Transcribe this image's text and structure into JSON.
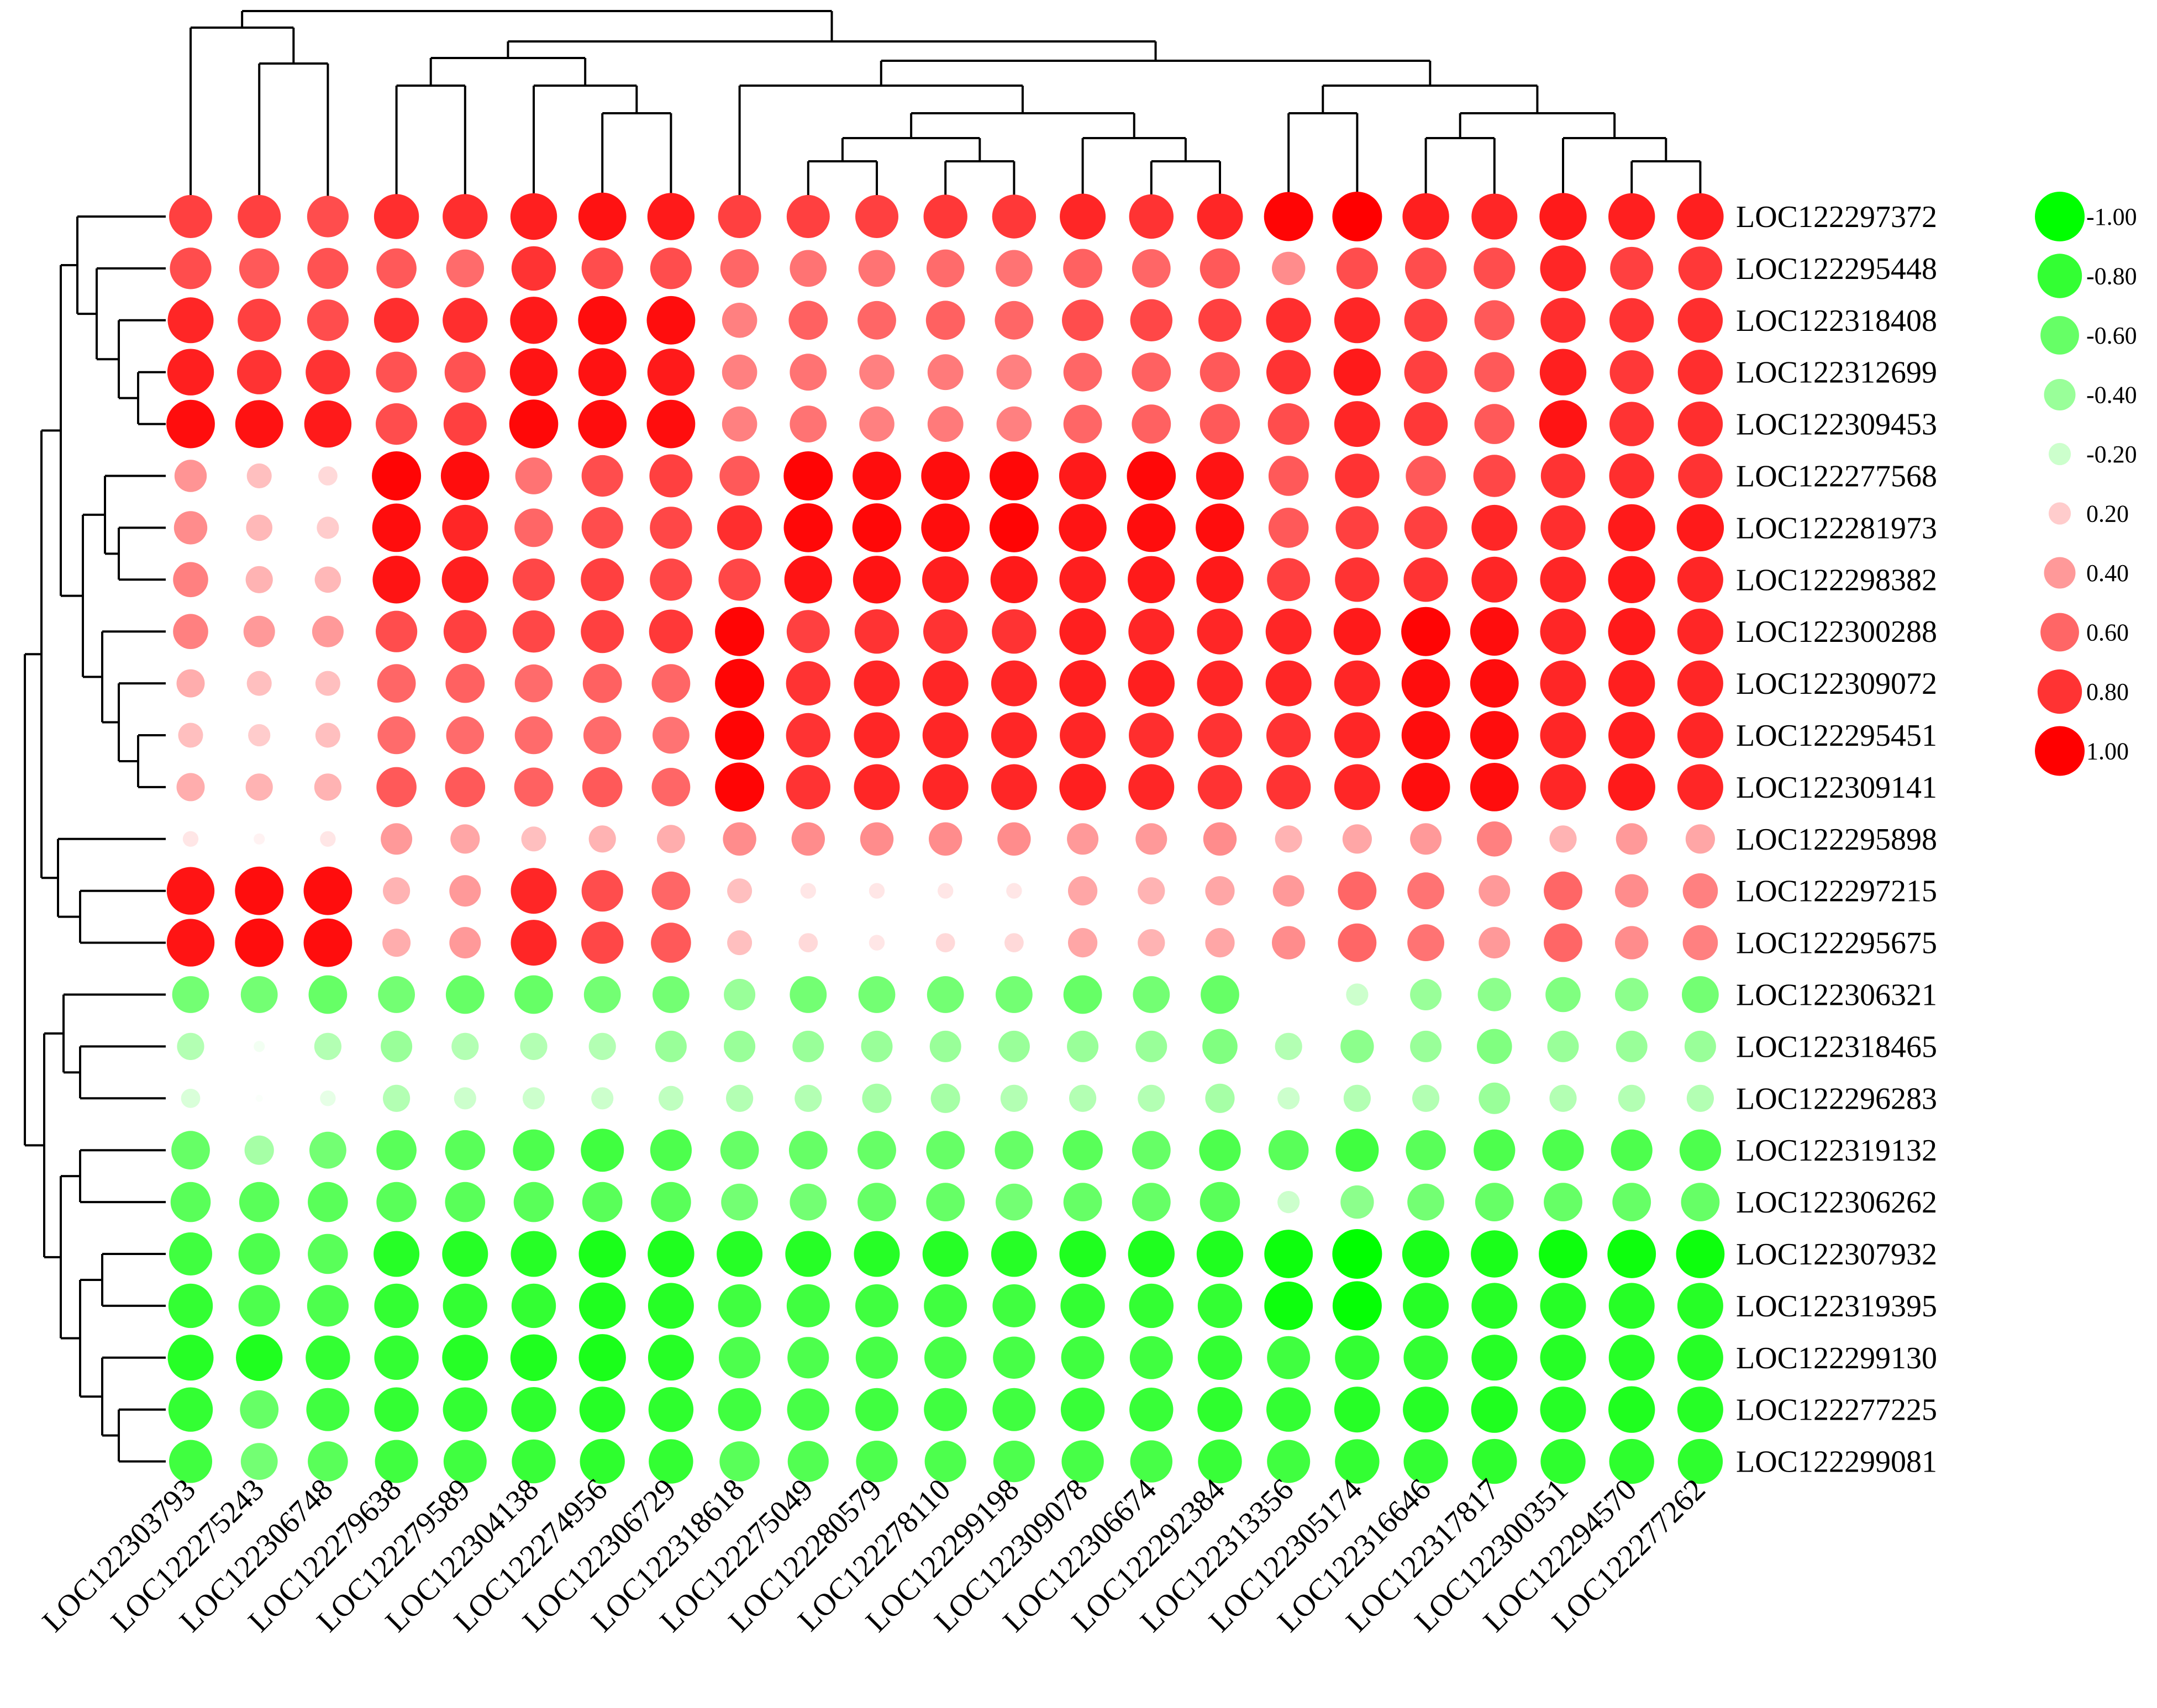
{
  "chart_data": {
    "type": "bubble_correlation_heatmap",
    "title": "",
    "xlabel": "",
    "ylabel": "",
    "color_low": "#00ff00",
    "color_mid": "#ffffff",
    "color_high": "#ff0000",
    "value_range": [
      -1.0,
      1.0
    ],
    "legend": {
      "position": "top-right",
      "entries": [
        {
          "label": "-1.00",
          "value": -1.0
        },
        {
          "label": "-0.80",
          "value": -0.8
        },
        {
          "label": "-0.60",
          "value": -0.6
        },
        {
          "label": "-0.40",
          "value": -0.4
        },
        {
          "label": "-0.20",
          "value": -0.2
        },
        {
          "label": "0.20",
          "value": 0.2
        },
        {
          "label": "0.40",
          "value": 0.4
        },
        {
          "label": "0.60",
          "value": 0.6
        },
        {
          "label": "0.80",
          "value": 0.8
        },
        {
          "label": "1.00",
          "value": 1.0
        }
      ]
    },
    "columns": [
      "LOC122303793",
      "LOC122275243",
      "LOC122306748",
      "LOC122279638",
      "LOC122279589",
      "LOC122304138",
      "LOC122274956",
      "LOC122306729",
      "LOC122318618",
      "LOC122275049",
      "LOC122280579",
      "LOC122278110",
      "LOC122299198",
      "LOC122309078",
      "LOC122306674",
      "LOC122292384",
      "LOC122313356",
      "LOC122305174",
      "LOC122316646",
      "LOC122317817",
      "LOC122300351",
      "LOC122294570",
      "LOC122277262"
    ],
    "rows": [
      "LOC122297372",
      "LOC122295448",
      "LOC122318408",
      "LOC122312699",
      "LOC122309453",
      "LOC122277568",
      "LOC122281973",
      "LOC122298382",
      "LOC122300288",
      "LOC122309072",
      "LOC122295451",
      "LOC122309141",
      "LOC122295898",
      "LOC122297215",
      "LOC122295675",
      "LOC122306321",
      "LOC122318465",
      "LOC122296283",
      "LOC122319132",
      "LOC122306262",
      "LOC122307932",
      "LOC122319395",
      "LOC122299130",
      "LOC122277225",
      "LOC122299081"
    ],
    "values": [
      [
        0.75,
        0.75,
        0.7,
        0.82,
        0.82,
        0.88,
        0.93,
        0.9,
        0.75,
        0.75,
        0.75,
        0.78,
        0.78,
        0.85,
        0.8,
        0.85,
        0.98,
        1.0,
        0.88,
        0.85,
        0.9,
        0.88,
        0.88
      ],
      [
        0.7,
        0.65,
        0.68,
        0.65,
        0.58,
        0.8,
        0.7,
        0.7,
        0.6,
        0.55,
        0.55,
        0.58,
        0.55,
        0.62,
        0.6,
        0.65,
        0.45,
        0.7,
        0.7,
        0.7,
        0.85,
        0.75,
        0.78
      ],
      [
        0.85,
        0.75,
        0.7,
        0.82,
        0.82,
        0.9,
        0.95,
        0.95,
        0.5,
        0.62,
        0.6,
        0.62,
        0.6,
        0.7,
        0.72,
        0.75,
        0.82,
        0.85,
        0.75,
        0.65,
        0.82,
        0.8,
        0.82
      ],
      [
        0.88,
        0.8,
        0.8,
        0.68,
        0.68,
        0.92,
        0.93,
        0.9,
        0.5,
        0.55,
        0.5,
        0.52,
        0.5,
        0.6,
        0.62,
        0.65,
        0.8,
        0.9,
        0.75,
        0.65,
        0.88,
        0.78,
        0.82
      ],
      [
        0.95,
        0.93,
        0.9,
        0.7,
        0.75,
        0.97,
        0.95,
        0.95,
        0.5,
        0.55,
        0.5,
        0.52,
        0.5,
        0.6,
        0.62,
        0.65,
        0.7,
        0.85,
        0.78,
        0.65,
        0.92,
        0.8,
        0.82
      ],
      [
        0.42,
        0.25,
        0.15,
        0.98,
        0.95,
        0.55,
        0.7,
        0.75,
        0.65,
        0.98,
        0.95,
        0.95,
        0.97,
        0.9,
        0.97,
        0.92,
        0.65,
        0.8,
        0.65,
        0.72,
        0.8,
        0.82,
        0.8
      ],
      [
        0.45,
        0.28,
        0.2,
        0.95,
        0.85,
        0.6,
        0.7,
        0.72,
        0.82,
        0.97,
        0.97,
        0.95,
        0.98,
        0.92,
        0.95,
        0.95,
        0.65,
        0.75,
        0.75,
        0.85,
        0.82,
        0.9,
        0.9
      ],
      [
        0.5,
        0.3,
        0.28,
        0.92,
        0.88,
        0.72,
        0.75,
        0.72,
        0.72,
        0.92,
        0.92,
        0.88,
        0.9,
        0.88,
        0.9,
        0.9,
        0.75,
        0.8,
        0.8,
        0.85,
        0.85,
        0.9,
        0.85
      ],
      [
        0.5,
        0.4,
        0.4,
        0.7,
        0.75,
        0.72,
        0.75,
        0.78,
        0.98,
        0.75,
        0.8,
        0.8,
        0.8,
        0.88,
        0.85,
        0.85,
        0.85,
        0.9,
        0.98,
        0.95,
        0.85,
        0.9,
        0.85
      ],
      [
        0.32,
        0.25,
        0.25,
        0.6,
        0.62,
        0.58,
        0.62,
        0.6,
        0.98,
        0.8,
        0.85,
        0.85,
        0.85,
        0.88,
        0.88,
        0.85,
        0.85,
        0.85,
        0.95,
        0.95,
        0.85,
        0.88,
        0.85
      ],
      [
        0.25,
        0.2,
        0.25,
        0.58,
        0.58,
        0.58,
        0.58,
        0.55,
        0.98,
        0.8,
        0.85,
        0.85,
        0.85,
        0.85,
        0.82,
        0.8,
        0.8,
        0.85,
        0.95,
        0.95,
        0.85,
        0.88,
        0.85
      ],
      [
        0.32,
        0.3,
        0.3,
        0.65,
        0.65,
        0.62,
        0.65,
        0.6,
        0.98,
        0.8,
        0.85,
        0.85,
        0.85,
        0.88,
        0.85,
        0.8,
        0.8,
        0.85,
        0.95,
        0.95,
        0.85,
        0.9,
        0.85
      ],
      [
        0.1,
        0.05,
        0.1,
        0.4,
        0.35,
        0.25,
        0.3,
        0.32,
        0.45,
        0.45,
        0.45,
        0.45,
        0.45,
        0.4,
        0.4,
        0.45,
        0.3,
        0.35,
        0.4,
        0.5,
        0.3,
        0.4,
        0.35
      ],
      [
        0.92,
        0.95,
        0.95,
        0.3,
        0.4,
        0.85,
        0.7,
        0.6,
        0.25,
        0.1,
        0.1,
        0.1,
        0.1,
        0.35,
        0.3,
        0.35,
        0.4,
        0.6,
        0.55,
        0.4,
        0.6,
        0.45,
        0.5
      ],
      [
        0.92,
        0.95,
        0.95,
        0.32,
        0.4,
        0.85,
        0.72,
        0.65,
        0.25,
        0.15,
        0.1,
        0.15,
        0.15,
        0.35,
        0.3,
        0.35,
        0.45,
        0.6,
        0.55,
        0.4,
        0.6,
        0.45,
        0.5
      ],
      [
        -0.55,
        -0.55,
        -0.6,
        -0.55,
        -0.6,
        -0.6,
        -0.55,
        -0.55,
        -0.4,
        -0.55,
        -0.55,
        -0.55,
        -0.55,
        -0.6,
        -0.55,
        -0.6,
        0.0,
        -0.2,
        -0.4,
        -0.45,
        -0.5,
        -0.45,
        -0.55
      ],
      [
        -0.3,
        -0.05,
        -0.3,
        -0.4,
        -0.3,
        -0.3,
        -0.3,
        -0.4,
        -0.4,
        -0.4,
        -0.4,
        -0.4,
        -0.4,
        -0.4,
        -0.4,
        -0.5,
        -0.3,
        -0.45,
        -0.4,
        -0.5,
        -0.4,
        -0.4,
        -0.4
      ],
      [
        -0.15,
        -0.02,
        -0.1,
        -0.3,
        -0.2,
        -0.2,
        -0.2,
        -0.25,
        -0.3,
        -0.3,
        -0.35,
        -0.35,
        -0.3,
        -0.3,
        -0.3,
        -0.35,
        -0.2,
        -0.3,
        -0.3,
        -0.4,
        -0.3,
        -0.3,
        -0.3
      ],
      [
        -0.6,
        -0.35,
        -0.55,
        -0.65,
        -0.65,
        -0.7,
        -0.75,
        -0.7,
        -0.6,
        -0.6,
        -0.6,
        -0.6,
        -0.6,
        -0.65,
        -0.6,
        -0.7,
        -0.65,
        -0.75,
        -0.65,
        -0.7,
        -0.7,
        -0.7,
        -0.7
      ],
      [
        -0.65,
        -0.65,
        -0.65,
        -0.65,
        -0.65,
        -0.65,
        -0.65,
        -0.65,
        -0.55,
        -0.55,
        -0.6,
        -0.6,
        -0.55,
        -0.6,
        -0.6,
        -0.65,
        -0.2,
        -0.45,
        -0.55,
        -0.6,
        -0.6,
        -0.6,
        -0.6
      ],
      [
        -0.75,
        -0.7,
        -0.65,
        -0.85,
        -0.85,
        -0.85,
        -0.9,
        -0.88,
        -0.85,
        -0.85,
        -0.85,
        -0.85,
        -0.85,
        -0.88,
        -0.88,
        -0.88,
        -0.95,
        -1.0,
        -0.9,
        -0.9,
        -0.95,
        -0.95,
        -0.95
      ],
      [
        -0.8,
        -0.7,
        -0.7,
        -0.8,
        -0.8,
        -0.8,
        -0.88,
        -0.85,
        -0.75,
        -0.75,
        -0.75,
        -0.75,
        -0.75,
        -0.8,
        -0.8,
        -0.8,
        -0.95,
        -0.98,
        -0.85,
        -0.85,
        -0.85,
        -0.85,
        -0.85
      ],
      [
        -0.85,
        -0.88,
        -0.8,
        -0.8,
        -0.85,
        -0.88,
        -0.9,
        -0.85,
        -0.7,
        -0.7,
        -0.72,
        -0.72,
        -0.72,
        -0.75,
        -0.75,
        -0.8,
        -0.75,
        -0.8,
        -0.8,
        -0.85,
        -0.85,
        -0.85,
        -0.85
      ],
      [
        -0.8,
        -0.6,
        -0.75,
        -0.8,
        -0.8,
        -0.82,
        -0.85,
        -0.82,
        -0.75,
        -0.72,
        -0.75,
        -0.75,
        -0.75,
        -0.78,
        -0.78,
        -0.82,
        -0.8,
        -0.85,
        -0.85,
        -0.88,
        -0.85,
        -0.88,
        -0.85
      ],
      [
        -0.75,
        -0.55,
        -0.65,
        -0.75,
        -0.75,
        -0.78,
        -0.82,
        -0.8,
        -0.65,
        -0.68,
        -0.7,
        -0.7,
        -0.7,
        -0.72,
        -0.72,
        -0.78,
        -0.75,
        -0.8,
        -0.8,
        -0.82,
        -0.82,
        -0.82,
        -0.82
      ]
    ]
  }
}
